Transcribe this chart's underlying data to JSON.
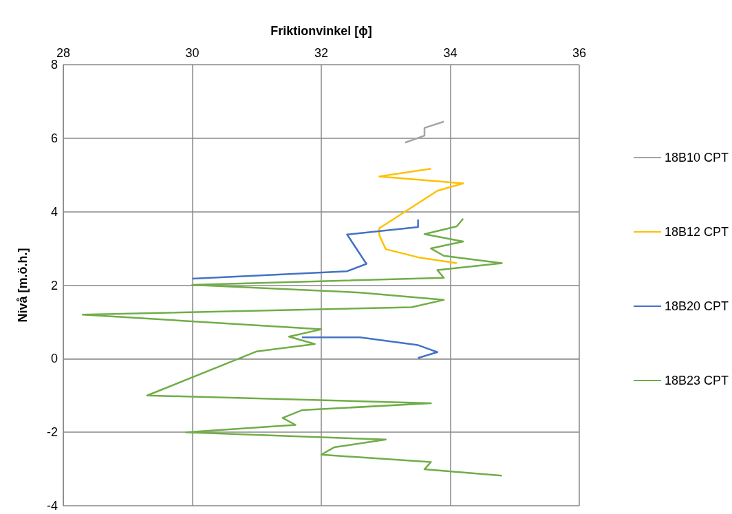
{
  "chart_data": {
    "type": "line",
    "xlabel": "Friktionvinkel [ϕ]",
    "ylabel": "Nivå [m.ö.h.]",
    "xlim": [
      28,
      36
    ],
    "xticks": [
      28,
      30,
      32,
      34,
      36
    ],
    "ylim": [
      -4,
      8
    ],
    "yticks": [
      -4,
      -2,
      0,
      2,
      4,
      6,
      8
    ],
    "grid": true,
    "legend": "right",
    "marker": "none",
    "line_style": "solid",
    "series": [
      {
        "name": "18B10 CPT",
        "color": "#a5a5a5",
        "x": [
          33.9,
          33.6,
          33.6,
          33.3
        ],
        "values": [
          6.45,
          6.28,
          6.07,
          5.88
        ]
      },
      {
        "name": "18B12 CPT",
        "color": "#ffc000",
        "x": [
          33.7,
          32.9,
          34.2,
          33.8,
          32.9,
          32.9,
          33.0,
          33.5,
          34.1
        ],
        "values": [
          5.17,
          4.96,
          4.77,
          4.57,
          3.55,
          3.36,
          2.98,
          2.76,
          2.6
        ]
      },
      {
        "name": "18B20 CPT",
        "color": "#4472c4",
        "x": [
          33.5,
          33.5,
          32.4,
          32.7,
          32.4,
          30.0,
          null,
          31.7,
          32.6,
          33.5,
          33.8,
          33.5
        ],
        "values": [
          3.79,
          3.58,
          3.38,
          2.58,
          2.38,
          2.18,
          null,
          0.58,
          0.58,
          0.37,
          0.18,
          0.02
        ]
      },
      {
        "name": "18B23 CPT",
        "color": "#70ad47",
        "x": [
          34.2,
          34.1,
          33.6,
          34.2,
          33.7,
          33.9,
          34.8,
          33.8,
          33.9,
          30.0,
          32.6,
          33.9,
          33.4,
          28.3,
          32.0,
          31.5,
          31.9,
          31.0,
          29.3,
          33.7,
          31.7,
          31.4,
          31.6,
          29.9,
          33.0,
          32.2,
          32.0,
          33.7,
          33.6,
          34.8
        ],
        "values": [
          3.81,
          3.6,
          3.39,
          3.19,
          3.0,
          2.8,
          2.6,
          2.41,
          2.2,
          2.01,
          1.8,
          1.6,
          1.4,
          1.2,
          0.8,
          0.6,
          0.4,
          0.2,
          -1.0,
          -1.21,
          -1.4,
          -1.61,
          -1.8,
          -2.0,
          -2.2,
          -2.41,
          -2.61,
          -2.81,
          -3.01,
          -3.18
        ]
      }
    ]
  }
}
